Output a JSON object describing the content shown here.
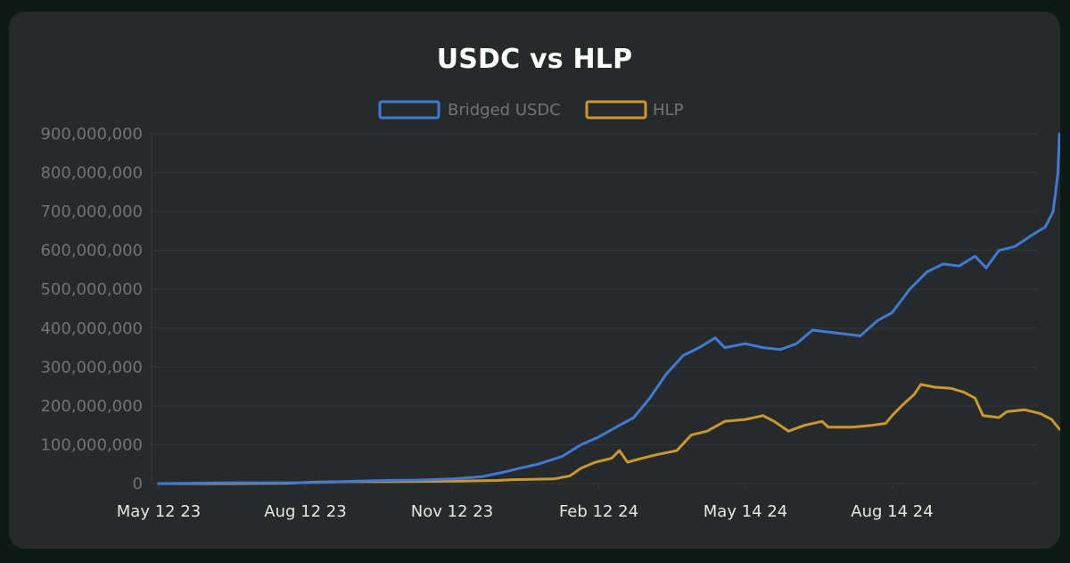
{
  "chart_data": {
    "type": "line",
    "title": "USDC vs HLP",
    "xlabel": "",
    "ylabel": "",
    "x_tick_labels": [
      "May 12 23",
      "Aug 12 23",
      "Nov 12 23",
      "Feb 12 24",
      "May 14 24",
      "Aug 14 24"
    ],
    "y_tick_labels": [
      "0",
      "100,000,000",
      "200,000,000",
      "300,000,000",
      "400,000,000",
      "500,000,000",
      "600,000,000",
      "700,000,000",
      "800,000,000",
      "900,000,000"
    ],
    "ylim": [
      0,
      900000000
    ],
    "grid": true,
    "legend_position": "top",
    "colors": {
      "background": "#262a2b",
      "page": "#0f1a17",
      "grid": "#33383a",
      "usdc": "#3f7ad6",
      "hlp": "#c9982e"
    },
    "series": [
      {
        "name": "Bridged USDC",
        "color": "#3f7ad6",
        "points": [
          [
            "2023-05-12",
            0
          ],
          [
            "2023-06-01",
            1000000
          ],
          [
            "2023-06-20",
            2000000
          ],
          [
            "2023-07-10",
            2000000
          ],
          [
            "2023-08-01",
            2000000
          ],
          [
            "2023-08-20",
            3000000
          ],
          [
            "2023-09-10",
            6000000
          ],
          [
            "2023-10-01",
            8000000
          ],
          [
            "2023-10-20",
            9000000
          ],
          [
            "2023-11-12",
            12000000
          ],
          [
            "2023-12-01",
            18000000
          ],
          [
            "2023-12-15",
            30000000
          ],
          [
            "2023-12-25",
            40000000
          ],
          [
            "2024-01-05",
            50000000
          ],
          [
            "2024-01-20",
            70000000
          ],
          [
            "2024-02-01",
            100000000
          ],
          [
            "2024-02-12",
            120000000
          ],
          [
            "2024-02-25",
            150000000
          ],
          [
            "2024-03-05",
            170000000
          ],
          [
            "2024-03-15",
            220000000
          ],
          [
            "2024-03-25",
            280000000
          ],
          [
            "2024-04-05",
            330000000
          ],
          [
            "2024-04-15",
            350000000
          ],
          [
            "2024-04-25",
            375000000
          ],
          [
            "2024-05-01",
            350000000
          ],
          [
            "2024-05-14",
            360000000
          ],
          [
            "2024-05-25",
            350000000
          ],
          [
            "2024-06-05",
            345000000
          ],
          [
            "2024-06-15",
            360000000
          ],
          [
            "2024-06-25",
            395000000
          ],
          [
            "2024-07-05",
            390000000
          ],
          [
            "2024-07-15",
            385000000
          ],
          [
            "2024-07-25",
            380000000
          ],
          [
            "2024-08-05",
            420000000
          ],
          [
            "2024-08-14",
            440000000
          ],
          [
            "2024-08-25",
            500000000
          ],
          [
            "2024-09-05",
            545000000
          ],
          [
            "2024-09-15",
            565000000
          ],
          [
            "2024-09-25",
            560000000
          ],
          [
            "2024-10-05",
            585000000
          ],
          [
            "2024-10-12",
            555000000
          ],
          [
            "2024-10-20",
            600000000
          ],
          [
            "2024-10-30",
            610000000
          ],
          [
            "2024-11-10",
            640000000
          ],
          [
            "2024-11-18",
            660000000
          ],
          [
            "2024-11-23",
            700000000
          ],
          [
            "2024-11-26",
            800000000
          ],
          [
            "2024-11-27",
            900000000
          ]
        ]
      },
      {
        "name": "HLP",
        "color": "#c9982e",
        "points": [
          [
            "2023-05-12",
            0
          ],
          [
            "2023-06-20",
            0
          ],
          [
            "2023-08-01",
            1000000
          ],
          [
            "2023-08-20",
            4000000
          ],
          [
            "2023-09-10",
            5000000
          ],
          [
            "2023-10-01",
            5000000
          ],
          [
            "2023-11-12",
            6000000
          ],
          [
            "2023-12-10",
            8000000
          ],
          [
            "2023-12-20",
            10000000
          ],
          [
            "2024-01-15",
            12000000
          ],
          [
            "2024-01-25",
            20000000
          ],
          [
            "2024-02-01",
            40000000
          ],
          [
            "2024-02-10",
            55000000
          ],
          [
            "2024-02-20",
            65000000
          ],
          [
            "2024-02-25",
            85000000
          ],
          [
            "2024-03-01",
            55000000
          ],
          [
            "2024-03-10",
            65000000
          ],
          [
            "2024-03-20",
            75000000
          ],
          [
            "2024-04-01",
            85000000
          ],
          [
            "2024-04-10",
            125000000
          ],
          [
            "2024-04-20",
            135000000
          ],
          [
            "2024-05-01",
            160000000
          ],
          [
            "2024-05-14",
            165000000
          ],
          [
            "2024-05-25",
            175000000
          ],
          [
            "2024-06-01",
            160000000
          ],
          [
            "2024-06-10",
            135000000
          ],
          [
            "2024-06-20",
            150000000
          ],
          [
            "2024-07-01",
            160000000
          ],
          [
            "2024-07-05",
            145000000
          ],
          [
            "2024-07-20",
            145000000
          ],
          [
            "2024-08-01",
            150000000
          ],
          [
            "2024-08-10",
            155000000
          ],
          [
            "2024-08-14",
            175000000
          ],
          [
            "2024-08-20",
            200000000
          ],
          [
            "2024-08-28",
            230000000
          ],
          [
            "2024-09-01",
            255000000
          ],
          [
            "2024-09-10",
            248000000
          ],
          [
            "2024-09-20",
            245000000
          ],
          [
            "2024-09-28",
            235000000
          ],
          [
            "2024-10-05",
            220000000
          ],
          [
            "2024-10-10",
            175000000
          ],
          [
            "2024-10-20",
            170000000
          ],
          [
            "2024-10-25",
            185000000
          ],
          [
            "2024-11-05",
            190000000
          ],
          [
            "2024-11-15",
            180000000
          ],
          [
            "2024-11-22",
            165000000
          ],
          [
            "2024-11-27",
            140000000
          ]
        ]
      }
    ]
  }
}
